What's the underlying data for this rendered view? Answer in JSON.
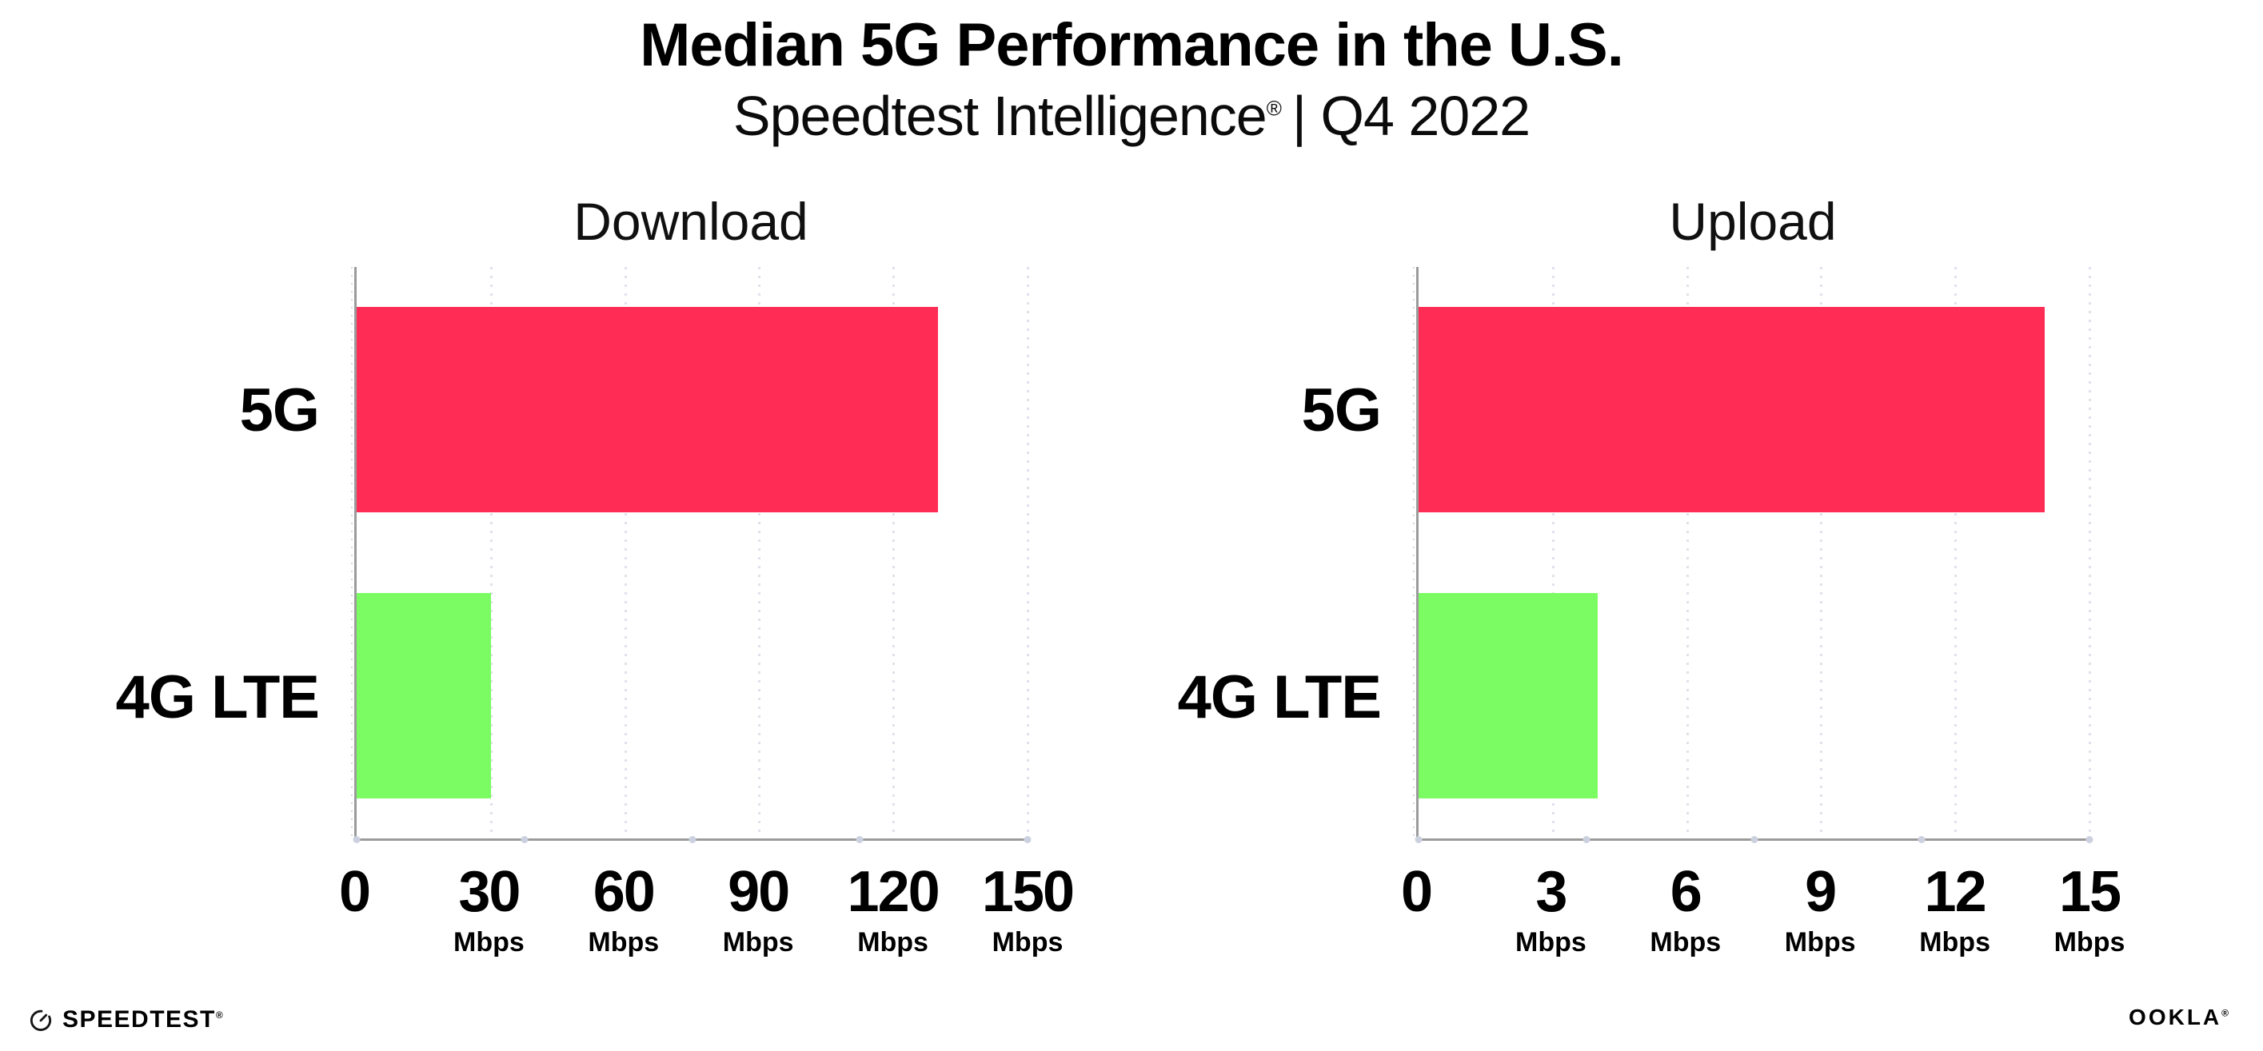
{
  "header": {
    "title": "Median 5G Performance in the U.S.",
    "subtitle_brand": "Speedtest Intelligence",
    "subtitle_reg": "®",
    "subtitle_rest": "| Q4 2022"
  },
  "chart_data": [
    {
      "type": "bar",
      "orientation": "horizontal",
      "title": "Download",
      "categories": [
        "5G",
        "4G LTE"
      ],
      "values": [
        130,
        30
      ],
      "unit": "Mbps",
      "xlim": [
        0,
        150
      ],
      "xticks": [
        0,
        30,
        60,
        90,
        120,
        150
      ],
      "bar_colors": [
        "#ff2d55",
        "#7bfc62"
      ],
      "grid": "vertical-dotted",
      "legend": "none"
    },
    {
      "type": "bar",
      "orientation": "horizontal",
      "title": "Upload",
      "categories": [
        "5G",
        "4G LTE"
      ],
      "values": [
        14,
        4
      ],
      "unit": "Mbps",
      "xlim": [
        0,
        15
      ],
      "xticks": [
        0,
        3,
        6,
        9,
        12,
        15
      ],
      "bar_colors": [
        "#ff2d55",
        "#7bfc62"
      ],
      "grid": "vertical-dotted",
      "legend": "none"
    }
  ],
  "footer": {
    "speedtest_label": "SPEEDTEST",
    "speedtest_reg": "®",
    "ookla_label": "OOKLA",
    "ookla_reg": "®"
  },
  "colors": {
    "bar_5g": "#ff2d55",
    "bar_4g_lte": "#7bfc62",
    "axis": "#9b9b9b",
    "gridline_dot": "#e0e1eb",
    "axis_marker_dot": "#ccd1df",
    "text": "#000000"
  }
}
